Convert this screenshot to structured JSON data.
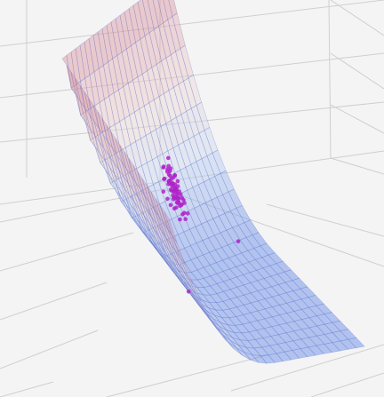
{
  "chart_data": {
    "type": "scatter",
    "subtype": "3d-surface-with-points",
    "title": "",
    "xlabel": "",
    "ylabel": "",
    "zlabel": "",
    "grid": true,
    "legend": "none",
    "surface": {
      "kind": "double-well",
      "colormap": [
        "#5f86e8",
        "#c6d6f4",
        "#f0d8d2",
        "#e2a3aa",
        "#cf7d8a"
      ],
      "opacity": 0.45
    },
    "cluster": {
      "count": 70,
      "center_u": 0.28,
      "center_v": 0.62,
      "spread": 0.05
    },
    "outliers": [
      {
        "u": 0.76,
        "v": 0.26
      },
      {
        "u": 0.46,
        "v": 0.86
      }
    ],
    "point_color": "#b023c8"
  }
}
